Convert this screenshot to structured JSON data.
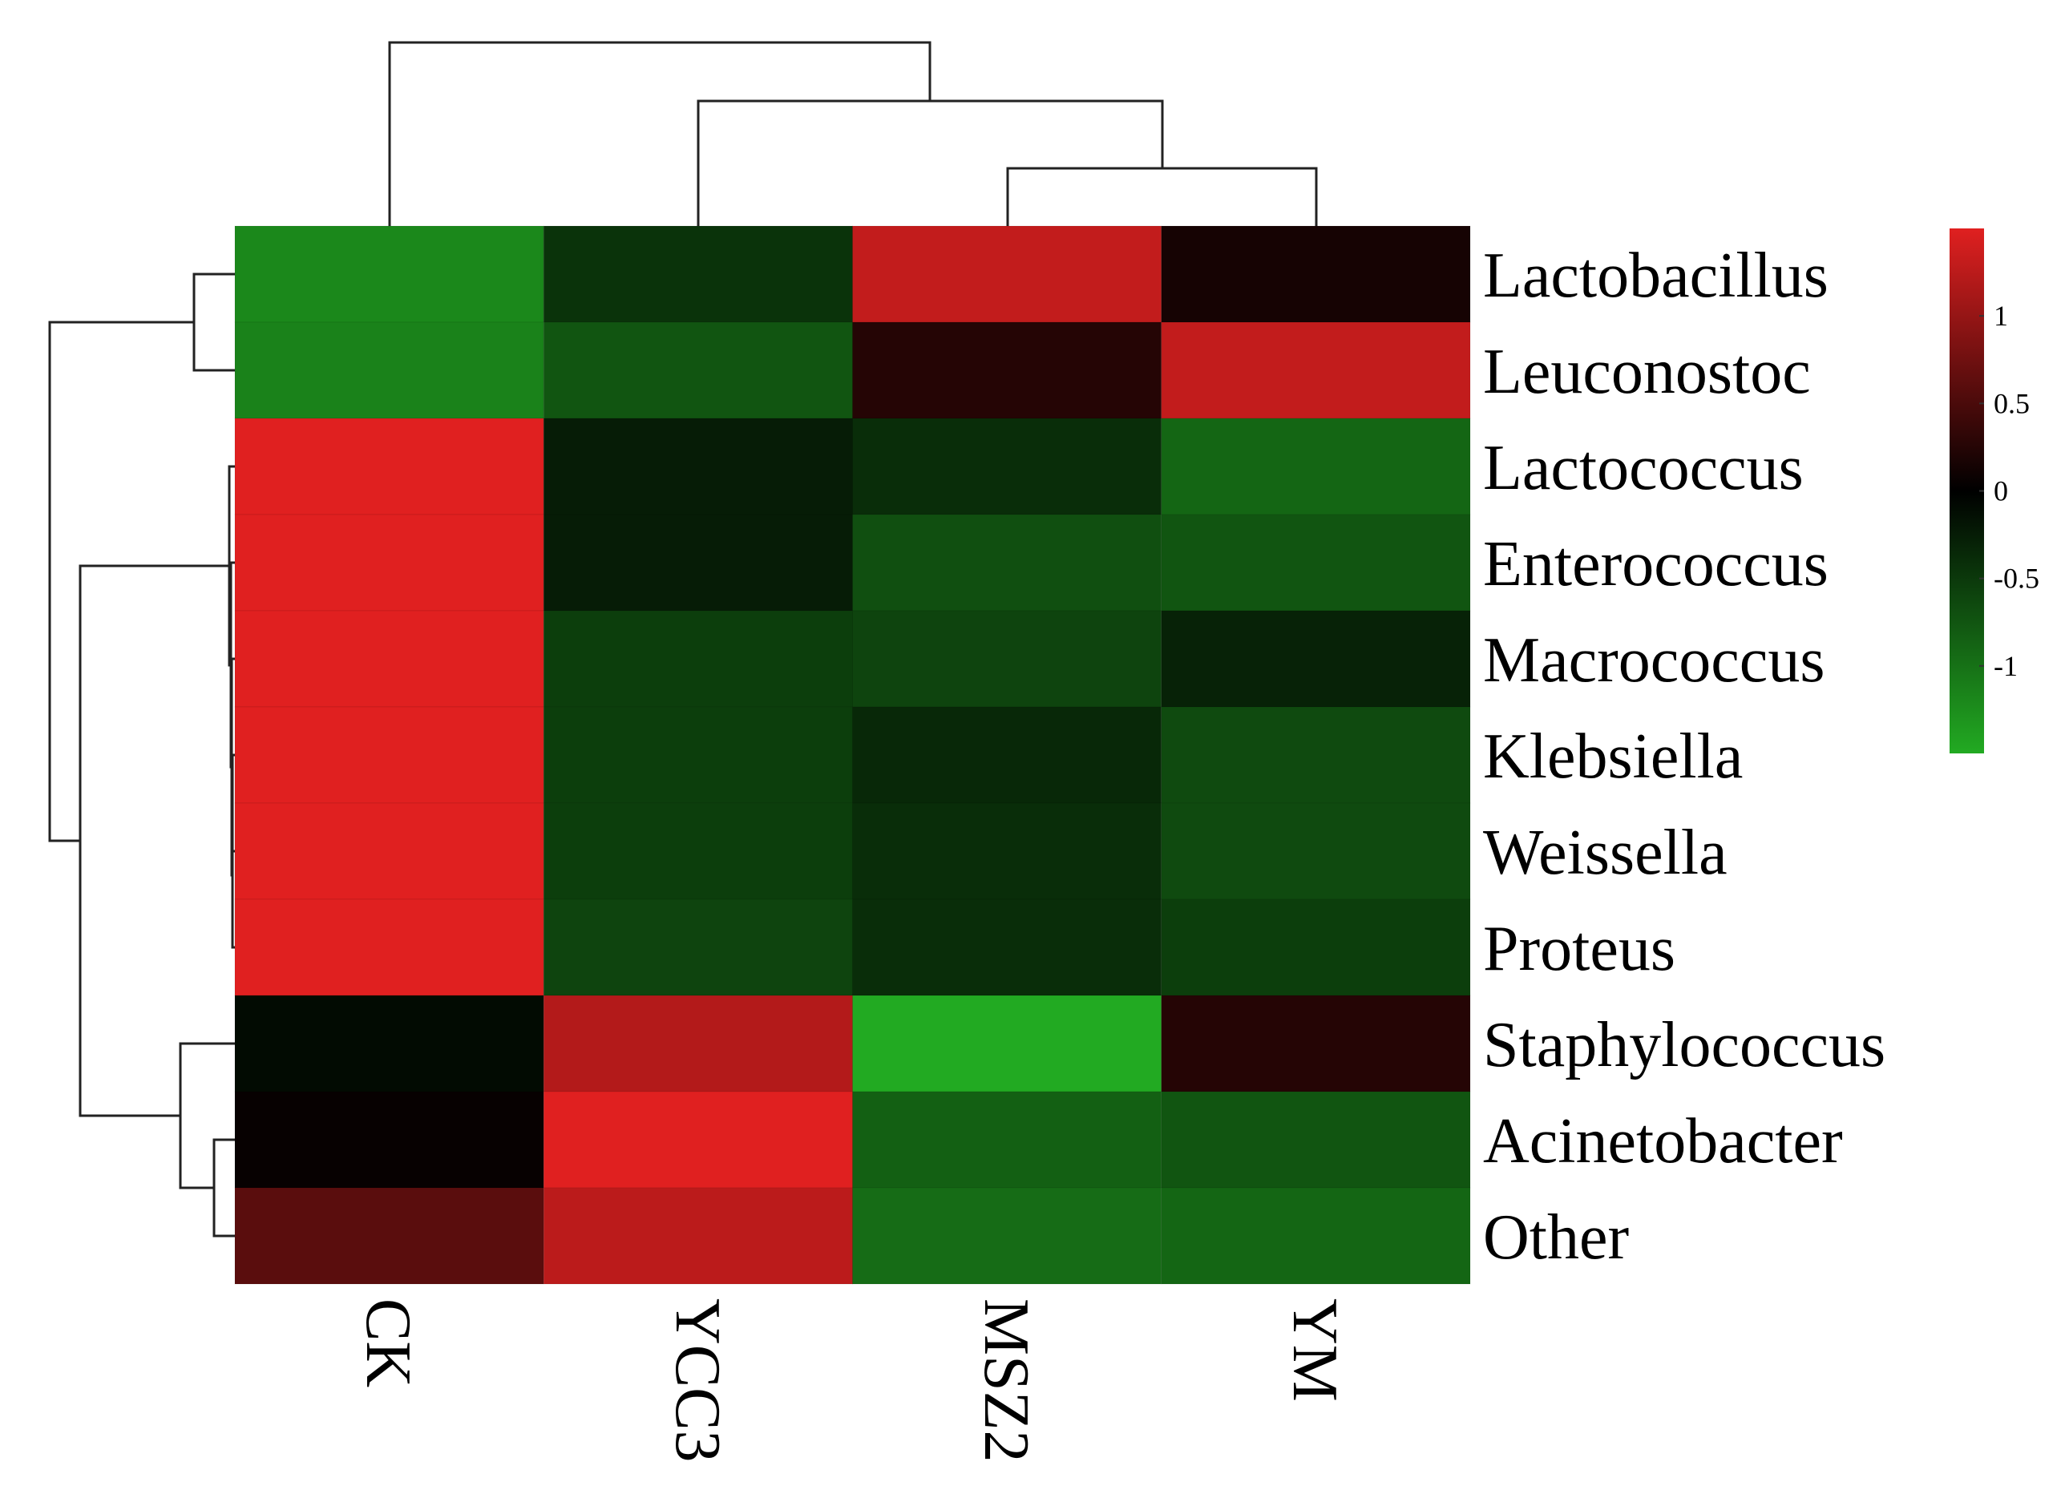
{
  "chart_data": {
    "type": "heatmap",
    "title": "",
    "rows": [
      "Lactobacillus",
      "Leuconostoc",
      "Lactococcus",
      "Enterococcus",
      "Macrococcus",
      "Klebsiella",
      "Weissella",
      "Proteus",
      "Staphylococcus",
      "Acinetobacter",
      "Other"
    ],
    "columns": [
      "CK",
      "YCC3",
      "MSZ2",
      "YM"
    ],
    "values": [
      [
        -1.2,
        -0.45,
        1.3,
        0.15
      ],
      [
        -1.15,
        -0.75,
        0.25,
        1.3
      ],
      [
        1.5,
        -0.25,
        -0.4,
        -0.9
      ],
      [
        1.5,
        -0.25,
        -0.7,
        -0.75
      ],
      [
        1.5,
        -0.55,
        -0.6,
        -0.3
      ],
      [
        1.5,
        -0.55,
        -0.35,
        -0.65
      ],
      [
        1.5,
        -0.55,
        -0.4,
        -0.65
      ],
      [
        1.5,
        -0.6,
        -0.4,
        -0.55
      ],
      [
        -0.1,
        1.2,
        -1.5,
        0.25
      ],
      [
        0.05,
        1.5,
        -0.85,
        -0.75
      ],
      [
        0.6,
        1.25,
        -0.95,
        -0.9
      ]
    ],
    "colorbar": {
      "min": -1.5,
      "max": 1.5,
      "ticks": [
        1,
        0.5,
        0,
        -0.5,
        -1
      ],
      "tick_labels": [
        "1",
        "0.5",
        "0",
        "-0.5",
        "-1"
      ],
      "colors": {
        "low": "#22aa22",
        "mid": "#000000",
        "high": "#e02020"
      }
    },
    "row_dendrogram": true,
    "column_dendrogram": true
  }
}
